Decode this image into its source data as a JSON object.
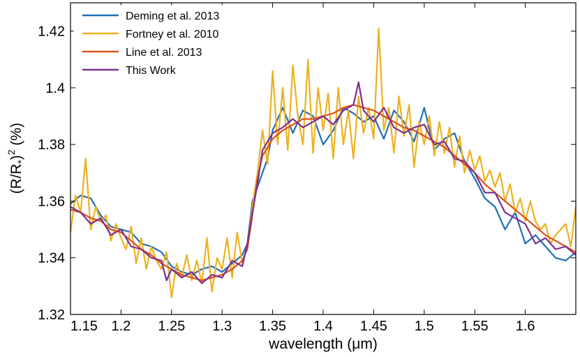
{
  "chart_data": {
    "type": "line",
    "xlabel": "wavelength (μm)",
    "ylabel_parts": {
      "open": "(R/R",
      "sub": "*",
      "close": ")",
      "sup": "2",
      "unit": " (%)"
    },
    "xlim": [
      1.15,
      1.65
    ],
    "ylim": [
      1.32,
      1.43
    ],
    "x_ticks": [
      1.15,
      1.2,
      1.25,
      1.3,
      1.35,
      1.4,
      1.45,
      1.5,
      1.55,
      1.6
    ],
    "x_tick_labels": [
      "1.15",
      "1.2",
      "1.25",
      "1.3",
      "1.35",
      "1.4",
      "1.45",
      "1.5",
      "1.55",
      "1.6"
    ],
    "y_ticks": [
      1.32,
      1.34,
      1.36,
      1.38,
      1.4,
      1.42
    ],
    "y_tick_labels": [
      "1.32",
      "1.34",
      "1.36",
      "1.38",
      "1.4",
      "1.42"
    ],
    "grid": false,
    "legend_position": "top-left",
    "series": [
      {
        "name": "Deming et al. 2013",
        "color": "#1f6fb4",
        "x": [
          1.15,
          1.16,
          1.17,
          1.18,
          1.19,
          1.2,
          1.21,
          1.22,
          1.23,
          1.24,
          1.25,
          1.26,
          1.27,
          1.28,
          1.29,
          1.3,
          1.31,
          1.32,
          1.325,
          1.33,
          1.335,
          1.34,
          1.345,
          1.35,
          1.36,
          1.37,
          1.38,
          1.39,
          1.4,
          1.41,
          1.42,
          1.43,
          1.44,
          1.45,
          1.46,
          1.47,
          1.48,
          1.49,
          1.5,
          1.51,
          1.52,
          1.53,
          1.54,
          1.55,
          1.56,
          1.57,
          1.58,
          1.59,
          1.6,
          1.61,
          1.62,
          1.63,
          1.64,
          1.65
        ],
        "y": [
          1.359,
          1.362,
          1.361,
          1.355,
          1.351,
          1.35,
          1.349,
          1.345,
          1.344,
          1.342,
          1.337,
          1.335,
          1.334,
          1.336,
          1.337,
          1.335,
          1.338,
          1.341,
          1.345,
          1.36,
          1.365,
          1.37,
          1.375,
          1.385,
          1.393,
          1.384,
          1.392,
          1.39,
          1.38,
          1.385,
          1.393,
          1.391,
          1.388,
          1.39,
          1.382,
          1.392,
          1.388,
          1.381,
          1.393,
          1.378,
          1.382,
          1.384,
          1.374,
          1.368,
          1.361,
          1.358,
          1.35,
          1.356,
          1.345,
          1.348,
          1.344,
          1.34,
          1.339,
          1.342
        ]
      },
      {
        "name": "Fortney et al. 2010",
        "color": "#edb120",
        "x": [
          1.15,
          1.155,
          1.16,
          1.165,
          1.17,
          1.175,
          1.18,
          1.185,
          1.19,
          1.195,
          1.2,
          1.205,
          1.21,
          1.215,
          1.22,
          1.225,
          1.23,
          1.235,
          1.24,
          1.245,
          1.25,
          1.255,
          1.26,
          1.265,
          1.27,
          1.275,
          1.28,
          1.285,
          1.29,
          1.295,
          1.3,
          1.305,
          1.31,
          1.315,
          1.32,
          1.325,
          1.33,
          1.335,
          1.34,
          1.345,
          1.35,
          1.355,
          1.36,
          1.365,
          1.37,
          1.375,
          1.38,
          1.385,
          1.39,
          1.395,
          1.4,
          1.405,
          1.41,
          1.415,
          1.42,
          1.425,
          1.43,
          1.435,
          1.44,
          1.445,
          1.45,
          1.455,
          1.46,
          1.465,
          1.47,
          1.475,
          1.48,
          1.485,
          1.49,
          1.495,
          1.5,
          1.505,
          1.51,
          1.515,
          1.52,
          1.525,
          1.53,
          1.535,
          1.54,
          1.545,
          1.55,
          1.555,
          1.56,
          1.565,
          1.57,
          1.575,
          1.58,
          1.585,
          1.59,
          1.595,
          1.6,
          1.605,
          1.61,
          1.615,
          1.62,
          1.625,
          1.63,
          1.635,
          1.64,
          1.645,
          1.65
        ],
        "y": [
          1.349,
          1.362,
          1.356,
          1.375,
          1.35,
          1.358,
          1.353,
          1.355,
          1.346,
          1.352,
          1.347,
          1.343,
          1.351,
          1.338,
          1.347,
          1.336,
          1.344,
          1.339,
          1.336,
          1.342,
          1.326,
          1.338,
          1.333,
          1.341,
          1.332,
          1.339,
          1.331,
          1.347,
          1.328,
          1.34,
          1.336,
          1.347,
          1.333,
          1.349,
          1.338,
          1.344,
          1.358,
          1.37,
          1.385,
          1.373,
          1.406,
          1.38,
          1.4,
          1.378,
          1.408,
          1.39,
          1.38,
          1.41,
          1.377,
          1.4,
          1.385,
          1.398,
          1.375,
          1.4,
          1.38,
          1.392,
          1.375,
          1.397,
          1.384,
          1.393,
          1.382,
          1.421,
          1.385,
          1.393,
          1.377,
          1.397,
          1.383,
          1.394,
          1.372,
          1.388,
          1.38,
          1.39,
          1.376,
          1.388,
          1.377,
          1.386,
          1.372,
          1.383,
          1.37,
          1.378,
          1.371,
          1.376,
          1.367,
          1.371,
          1.365,
          1.37,
          1.36,
          1.366,
          1.356,
          1.361,
          1.353,
          1.36,
          1.353,
          1.35,
          1.352,
          1.345,
          1.348,
          1.35,
          1.352,
          1.344,
          1.358
        ]
      },
      {
        "name": "Line et al. 2013",
        "color": "#d95319",
        "x": [
          1.15,
          1.16,
          1.17,
          1.18,
          1.19,
          1.2,
          1.21,
          1.22,
          1.23,
          1.24,
          1.25,
          1.26,
          1.27,
          1.28,
          1.29,
          1.3,
          1.31,
          1.32,
          1.325,
          1.33,
          1.335,
          1.34,
          1.35,
          1.36,
          1.37,
          1.38,
          1.39,
          1.4,
          1.41,
          1.42,
          1.43,
          1.44,
          1.45,
          1.46,
          1.47,
          1.48,
          1.49,
          1.5,
          1.51,
          1.52,
          1.53,
          1.54,
          1.55,
          1.56,
          1.57,
          1.58,
          1.59,
          1.6,
          1.61,
          1.62,
          1.63,
          1.64,
          1.65
        ],
        "y": [
          1.357,
          1.356,
          1.354,
          1.353,
          1.35,
          1.349,
          1.346,
          1.343,
          1.341,
          1.338,
          1.336,
          1.334,
          1.333,
          1.332,
          1.333,
          1.334,
          1.336,
          1.339,
          1.343,
          1.355,
          1.368,
          1.376,
          1.382,
          1.385,
          1.387,
          1.389,
          1.389,
          1.39,
          1.391,
          1.393,
          1.394,
          1.393,
          1.392,
          1.39,
          1.388,
          1.386,
          1.385,
          1.383,
          1.381,
          1.379,
          1.376,
          1.373,
          1.37,
          1.366,
          1.363,
          1.36,
          1.357,
          1.354,
          1.351,
          1.348,
          1.346,
          1.344,
          1.342
        ]
      },
      {
        "name": "This Work",
        "color": "#7e2f8e",
        "x": [
          1.15,
          1.16,
          1.17,
          1.18,
          1.19,
          1.2,
          1.21,
          1.22,
          1.23,
          1.24,
          1.245,
          1.25,
          1.26,
          1.27,
          1.28,
          1.29,
          1.3,
          1.31,
          1.32,
          1.325,
          1.33,
          1.335,
          1.34,
          1.35,
          1.36,
          1.37,
          1.38,
          1.39,
          1.4,
          1.41,
          1.42,
          1.43,
          1.435,
          1.44,
          1.45,
          1.46,
          1.47,
          1.48,
          1.49,
          1.5,
          1.51,
          1.52,
          1.53,
          1.54,
          1.55,
          1.56,
          1.57,
          1.58,
          1.59,
          1.6,
          1.61,
          1.62,
          1.63,
          1.64,
          1.65
        ],
        "y": [
          1.358,
          1.356,
          1.352,
          1.354,
          1.348,
          1.35,
          1.344,
          1.343,
          1.34,
          1.339,
          1.332,
          1.336,
          1.333,
          1.335,
          1.331,
          1.334,
          1.333,
          1.339,
          1.337,
          1.345,
          1.356,
          1.366,
          1.378,
          1.384,
          1.386,
          1.389,
          1.386,
          1.388,
          1.39,
          1.387,
          1.392,
          1.394,
          1.402,
          1.392,
          1.388,
          1.393,
          1.386,
          1.384,
          1.386,
          1.387,
          1.38,
          1.381,
          1.375,
          1.374,
          1.37,
          1.363,
          1.363,
          1.356,
          1.354,
          1.352,
          1.345,
          1.347,
          1.343,
          1.344,
          1.341
        ]
      }
    ]
  }
}
